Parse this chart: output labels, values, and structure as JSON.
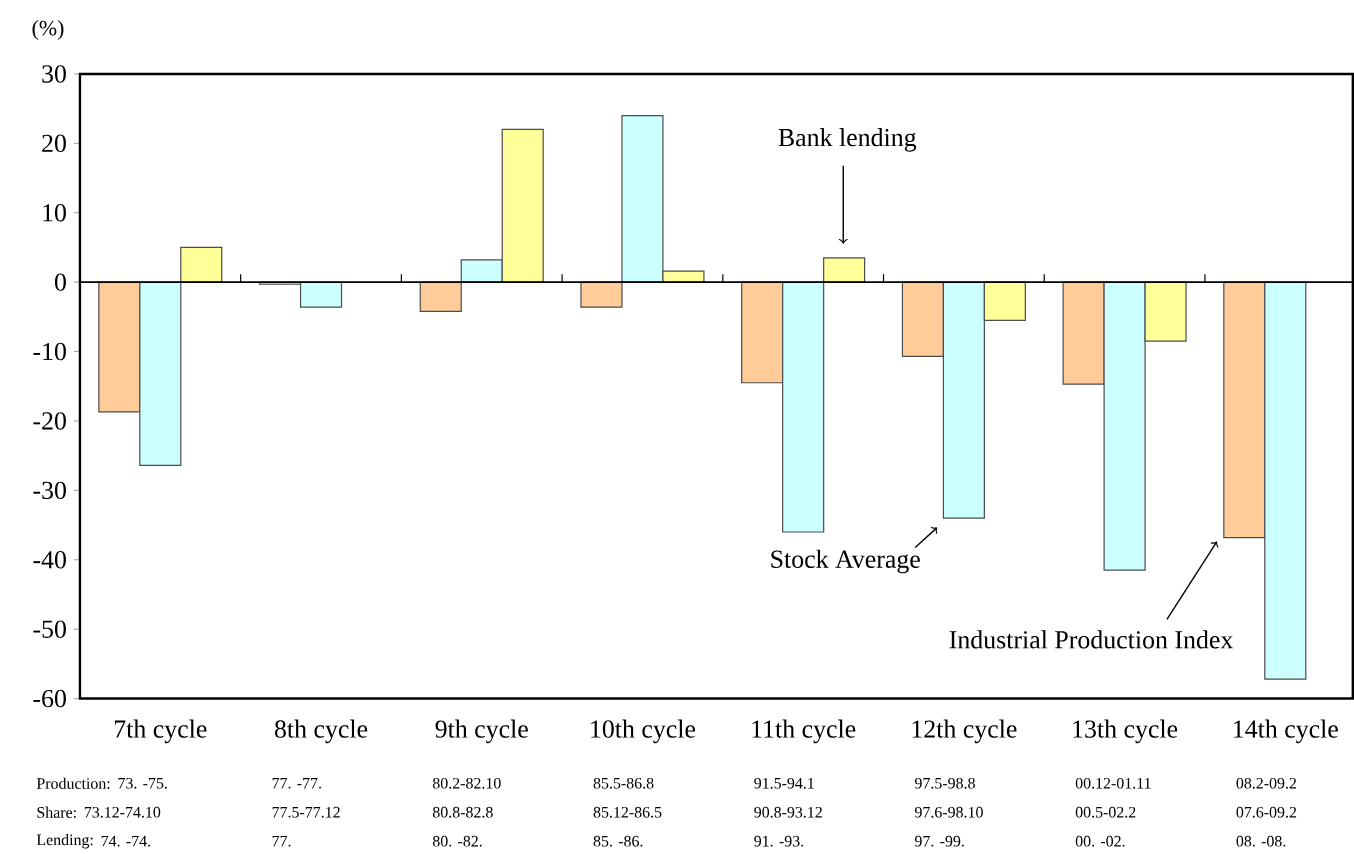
{
  "chart_data": {
    "type": "bar",
    "ylabel": "(%)",
    "categories": [
      "7th cycle",
      "8th cycle",
      "9th cycle",
      "10th cycle",
      "11th cycle",
      "12th cycle",
      "13th cycle",
      "14th cycle"
    ],
    "series": [
      {
        "name": "Industrial Production Index",
        "color": "#ffcc99",
        "values": [
          -18.7,
          -0.3,
          -4.2,
          -3.6,
          -14.5,
          -10.7,
          -14.7,
          -36.8
        ]
      },
      {
        "name": "Stock Average",
        "color": "#ccffff",
        "values": [
          -26.4,
          -3.6,
          3.2,
          24,
          -36,
          -34,
          -41.5,
          -57.2
        ]
      },
      {
        "name": "Bank lending",
        "color": "#ffff99",
        "values": [
          5,
          null,
          22,
          1.6,
          3.5,
          -5.5,
          -8.5,
          null
        ]
      }
    ],
    "ylim": [
      -60,
      30
    ],
    "yticks": [
      -60,
      -50,
      -40,
      -30,
      -20,
      -10,
      0,
      10,
      20,
      30
    ],
    "annotations": [
      "Production:",
      "73.   -75.",
      "77.   -77.",
      "80.2-82.10",
      "85.5-86.8",
      "91.5-94.1",
      "97.5-98.8",
      "00.12-01.11",
      "08.2-09.2",
      "Share:",
      "73.12-74.10",
      "77.5-77.12",
      "80.8-82.8",
      "85.12-86.5",
      "90.8-93.12",
      "97.6-98.10",
      "00.5-02.2",
      "07.6-09.2",
      "Lending:",
      "74.   -74.",
      "77.",
      "80.   -82.",
      "85.   -86.",
      "91.   -93.",
      "97.   -99.",
      "00.   -02.",
      "08.   -08."
    ]
  }
}
